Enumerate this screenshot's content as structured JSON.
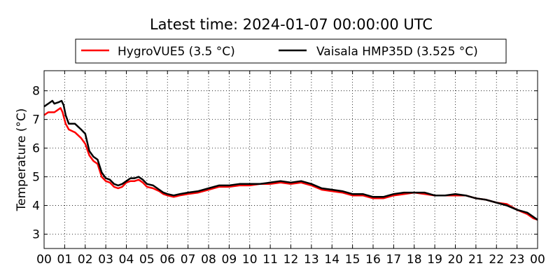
{
  "chart_data": {
    "type": "line",
    "title": "Latest time: 2024-01-07 00:00:00 UTC",
    "xlabel": "",
    "ylabel": "Temperature (°C)",
    "xlim": [
      0,
      24
    ],
    "ylim": [
      2.5,
      8.7
    ],
    "x_ticks": [
      0,
      1,
      2,
      3,
      4,
      5,
      6,
      7,
      8,
      9,
      10,
      11,
      12,
      13,
      14,
      15,
      16,
      17,
      18,
      19,
      20,
      21,
      22,
      23,
      24
    ],
    "x_tick_labels": [
      "00",
      "01",
      "02",
      "03",
      "04",
      "05",
      "06",
      "07",
      "08",
      "09",
      "10",
      "11",
      "12",
      "13",
      "14",
      "15",
      "16",
      "17",
      "18",
      "19",
      "20",
      "21",
      "22",
      "23",
      "00"
    ],
    "y_ticks": [
      3,
      4,
      5,
      6,
      7,
      8
    ],
    "y_tick_labels": [
      "3",
      "4",
      "5",
      "6",
      "7",
      "8"
    ],
    "grid": true,
    "legend_position": "top-center",
    "series": [
      {
        "name": "HygroVUE5 (3.5 °C)",
        "color": "#ff0000",
        "points": [
          [
            0,
            7.15
          ],
          [
            0.2,
            7.25
          ],
          [
            0.5,
            7.25
          ],
          [
            0.8,
            7.4
          ],
          [
            0.9,
            7.25
          ],
          [
            1.05,
            6.85
          ],
          [
            1.2,
            6.65
          ],
          [
            1.5,
            6.55
          ],
          [
            1.8,
            6.35
          ],
          [
            2.0,
            6.15
          ],
          [
            2.2,
            5.75
          ],
          [
            2.4,
            5.55
          ],
          [
            2.6,
            5.45
          ],
          [
            2.8,
            5.0
          ],
          [
            3.0,
            4.85
          ],
          [
            3.2,
            4.8
          ],
          [
            3.4,
            4.65
          ],
          [
            3.6,
            4.6
          ],
          [
            3.8,
            4.65
          ],
          [
            4.0,
            4.8
          ],
          [
            4.2,
            4.85
          ],
          [
            4.4,
            4.85
          ],
          [
            4.6,
            4.9
          ],
          [
            4.8,
            4.8
          ],
          [
            5.0,
            4.65
          ],
          [
            5.3,
            4.6
          ],
          [
            5.6,
            4.5
          ],
          [
            5.8,
            4.4
          ],
          [
            6.0,
            4.35
          ],
          [
            6.3,
            4.3
          ],
          [
            6.6,
            4.35
          ],
          [
            7.0,
            4.4
          ],
          [
            7.5,
            4.45
          ],
          [
            8.0,
            4.55
          ],
          [
            8.5,
            4.65
          ],
          [
            9.0,
            4.65
          ],
          [
            9.5,
            4.7
          ],
          [
            10.0,
            4.7
          ],
          [
            10.5,
            4.75
          ],
          [
            11.0,
            4.75
          ],
          [
            11.5,
            4.8
          ],
          [
            12.0,
            4.75
          ],
          [
            12.5,
            4.8
          ],
          [
            13.0,
            4.7
          ],
          [
            13.5,
            4.55
          ],
          [
            14.0,
            4.5
          ],
          [
            14.5,
            4.45
          ],
          [
            15.0,
            4.35
          ],
          [
            15.5,
            4.35
          ],
          [
            16.0,
            4.25
          ],
          [
            16.5,
            4.25
          ],
          [
            17.0,
            4.35
          ],
          [
            17.5,
            4.4
          ],
          [
            18.0,
            4.45
          ],
          [
            18.5,
            4.4
          ],
          [
            19.0,
            4.35
          ],
          [
            19.5,
            4.35
          ],
          [
            20.0,
            4.35
          ],
          [
            20.5,
            4.35
          ],
          [
            21.0,
            4.25
          ],
          [
            21.5,
            4.2
          ],
          [
            22.0,
            4.1
          ],
          [
            22.5,
            4.05
          ],
          [
            23.0,
            3.85
          ],
          [
            23.5,
            3.7
          ],
          [
            23.8,
            3.55
          ],
          [
            24.0,
            3.5
          ]
        ]
      },
      {
        "name": "Vaisala HMP35D (3.525 °C)",
        "color": "#000000",
        "points": [
          [
            0,
            7.45
          ],
          [
            0.2,
            7.55
          ],
          [
            0.4,
            7.65
          ],
          [
            0.5,
            7.55
          ],
          [
            0.7,
            7.6
          ],
          [
            0.85,
            7.65
          ],
          [
            0.95,
            7.5
          ],
          [
            1.05,
            7.15
          ],
          [
            1.2,
            6.85
          ],
          [
            1.5,
            6.85
          ],
          [
            1.8,
            6.65
          ],
          [
            2.0,
            6.5
          ],
          [
            2.2,
            5.9
          ],
          [
            2.4,
            5.7
          ],
          [
            2.6,
            5.6
          ],
          [
            2.8,
            5.15
          ],
          [
            3.0,
            4.95
          ],
          [
            3.2,
            4.9
          ],
          [
            3.4,
            4.75
          ],
          [
            3.6,
            4.7
          ],
          [
            3.8,
            4.75
          ],
          [
            4.0,
            4.85
          ],
          [
            4.2,
            4.95
          ],
          [
            4.4,
            4.95
          ],
          [
            4.6,
            5.0
          ],
          [
            4.8,
            4.9
          ],
          [
            5.0,
            4.75
          ],
          [
            5.3,
            4.7
          ],
          [
            5.6,
            4.55
          ],
          [
            5.8,
            4.45
          ],
          [
            6.0,
            4.4
          ],
          [
            6.3,
            4.35
          ],
          [
            6.6,
            4.4
          ],
          [
            7.0,
            4.45
          ],
          [
            7.5,
            4.5
          ],
          [
            8.0,
            4.6
          ],
          [
            8.5,
            4.7
          ],
          [
            9.0,
            4.7
          ],
          [
            9.5,
            4.75
          ],
          [
            10.0,
            4.75
          ],
          [
            10.5,
            4.75
          ],
          [
            11.0,
            4.8
          ],
          [
            11.5,
            4.85
          ],
          [
            12.0,
            4.8
          ],
          [
            12.5,
            4.85
          ],
          [
            13.0,
            4.75
          ],
          [
            13.5,
            4.6
          ],
          [
            14.0,
            4.55
          ],
          [
            14.5,
            4.5
          ],
          [
            15.0,
            4.4
          ],
          [
            15.5,
            4.4
          ],
          [
            16.0,
            4.3
          ],
          [
            16.5,
            4.3
          ],
          [
            17.0,
            4.4
          ],
          [
            17.5,
            4.45
          ],
          [
            18.0,
            4.45
          ],
          [
            18.5,
            4.45
          ],
          [
            19.0,
            4.35
          ],
          [
            19.5,
            4.35
          ],
          [
            20.0,
            4.4
          ],
          [
            20.5,
            4.35
          ],
          [
            21.0,
            4.25
          ],
          [
            21.5,
            4.2
          ],
          [
            22.0,
            4.1
          ],
          [
            22.5,
            4.0
          ],
          [
            23.0,
            3.85
          ],
          [
            23.5,
            3.75
          ],
          [
            23.8,
            3.6
          ],
          [
            24.0,
            3.5
          ]
        ]
      }
    ]
  }
}
